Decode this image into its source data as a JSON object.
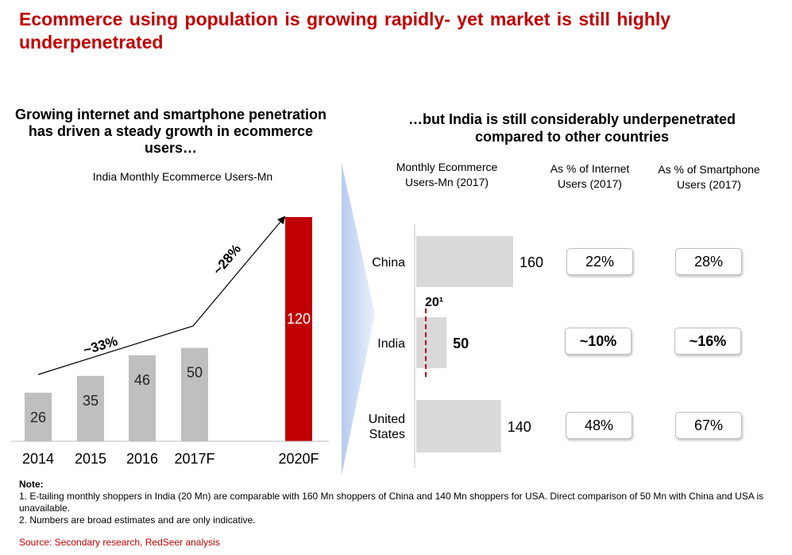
{
  "title": "Ecommerce using population is growing rapidly- yet market is still highly underpenetrated",
  "left_panel": {
    "heading": "Growing internet and smartphone penetration has driven a steady growth in ecommerce users…",
    "subtitle": "India Monthly Ecommerce Users-Mn",
    "growth_1": "~33%",
    "growth_2": "~28%"
  },
  "right_panel": {
    "heading": "…but India is still considerably underpenetrated compared to other countries",
    "col1": "Monthly Ecommerce Users-Mn (2017)",
    "col2": "As % of Internet Users (2017)",
    "col3": "As % of Smartphone Users (2017)",
    "india_marker_label": "20¹",
    "rows": [
      {
        "country": "China",
        "internet_pct": "22%",
        "smartphone_pct": "28%"
      },
      {
        "country": "India",
        "internet_pct": "~10%",
        "smartphone_pct": "~16%"
      },
      {
        "country": "United States",
        "internet_pct": "48%",
        "smartphone_pct": "67%"
      }
    ]
  },
  "chart_data": [
    {
      "type": "bar",
      "title": "India Monthly Ecommerce Users-Mn",
      "categories": [
        "2014",
        "2015",
        "2016",
        "2017F",
        "2020F"
      ],
      "values": [
        26,
        35,
        46,
        50,
        120
      ],
      "ylim": [
        0,
        120
      ],
      "colors": {
        "historic": "#bfbfbf",
        "forecast": "#c00000"
      }
    },
    {
      "type": "bar",
      "orientation": "horizontal",
      "title": "Monthly Ecommerce Users-Mn (2017)",
      "categories": [
        "China",
        "India",
        "United States"
      ],
      "values": [
        160,
        50,
        140
      ],
      "xlim": [
        0,
        160
      ],
      "colors": {
        "bar": "#d9d9d9",
        "marker": "#c00000"
      }
    }
  ],
  "notes": {
    "heading": "Note:",
    "line1": "1. E-tailing monthly shoppers in India (20 Mn) are comparable with 160 Mn shoppers of China and 140 Mn shoppers for USA. Direct comparison of 50 Mn with China and USA is unavailable.",
    "line2": "2. Numbers are broad estimates and are only indicative."
  },
  "source": "Source: Secondary research, RedSeer analysis"
}
